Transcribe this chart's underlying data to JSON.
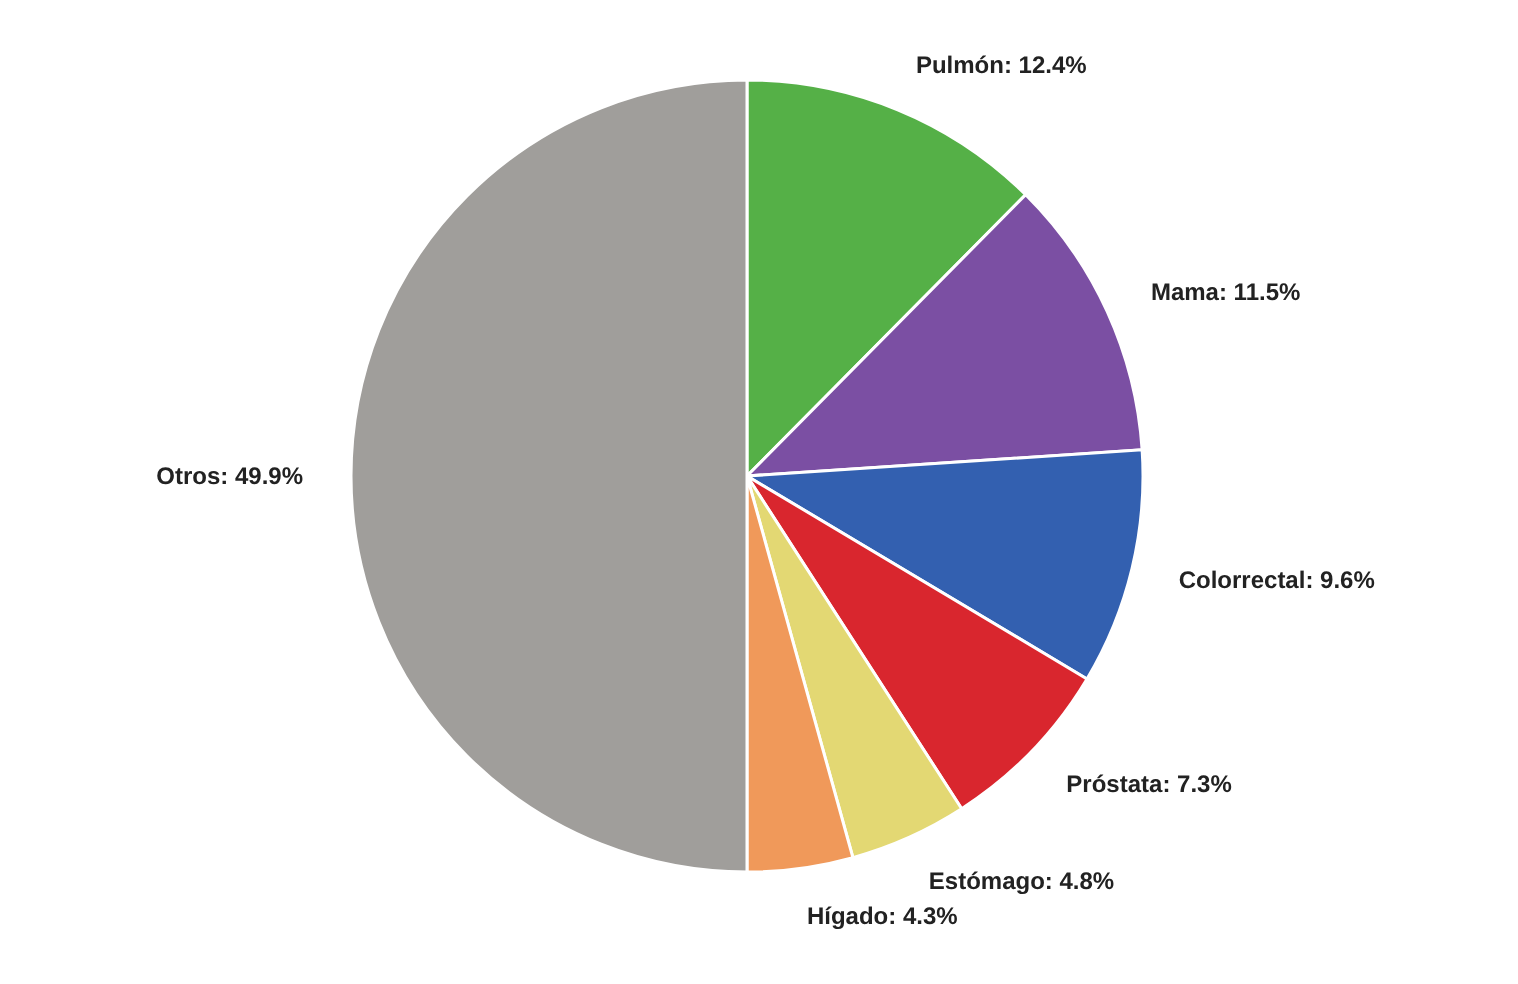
{
  "chart_data": {
    "type": "pie",
    "categories": [
      "Pulmón",
      "Mama",
      "Colorrectal",
      "Próstata",
      "Estómago",
      "Hígado",
      "Otros"
    ],
    "values": [
      12.4,
      11.5,
      9.6,
      7.3,
      4.8,
      4.3,
      49.9
    ],
    "value_labels": [
      "12.4%",
      "11.5%",
      "9.6%",
      "7.3%",
      "4.8%",
      "4.3%",
      "49.9%"
    ],
    "colors": [
      "#55b047",
      "#7b4fa3",
      "#3360b0",
      "#d9262e",
      "#e3d873",
      "#f0995a",
      "#a09e9b"
    ]
  }
}
